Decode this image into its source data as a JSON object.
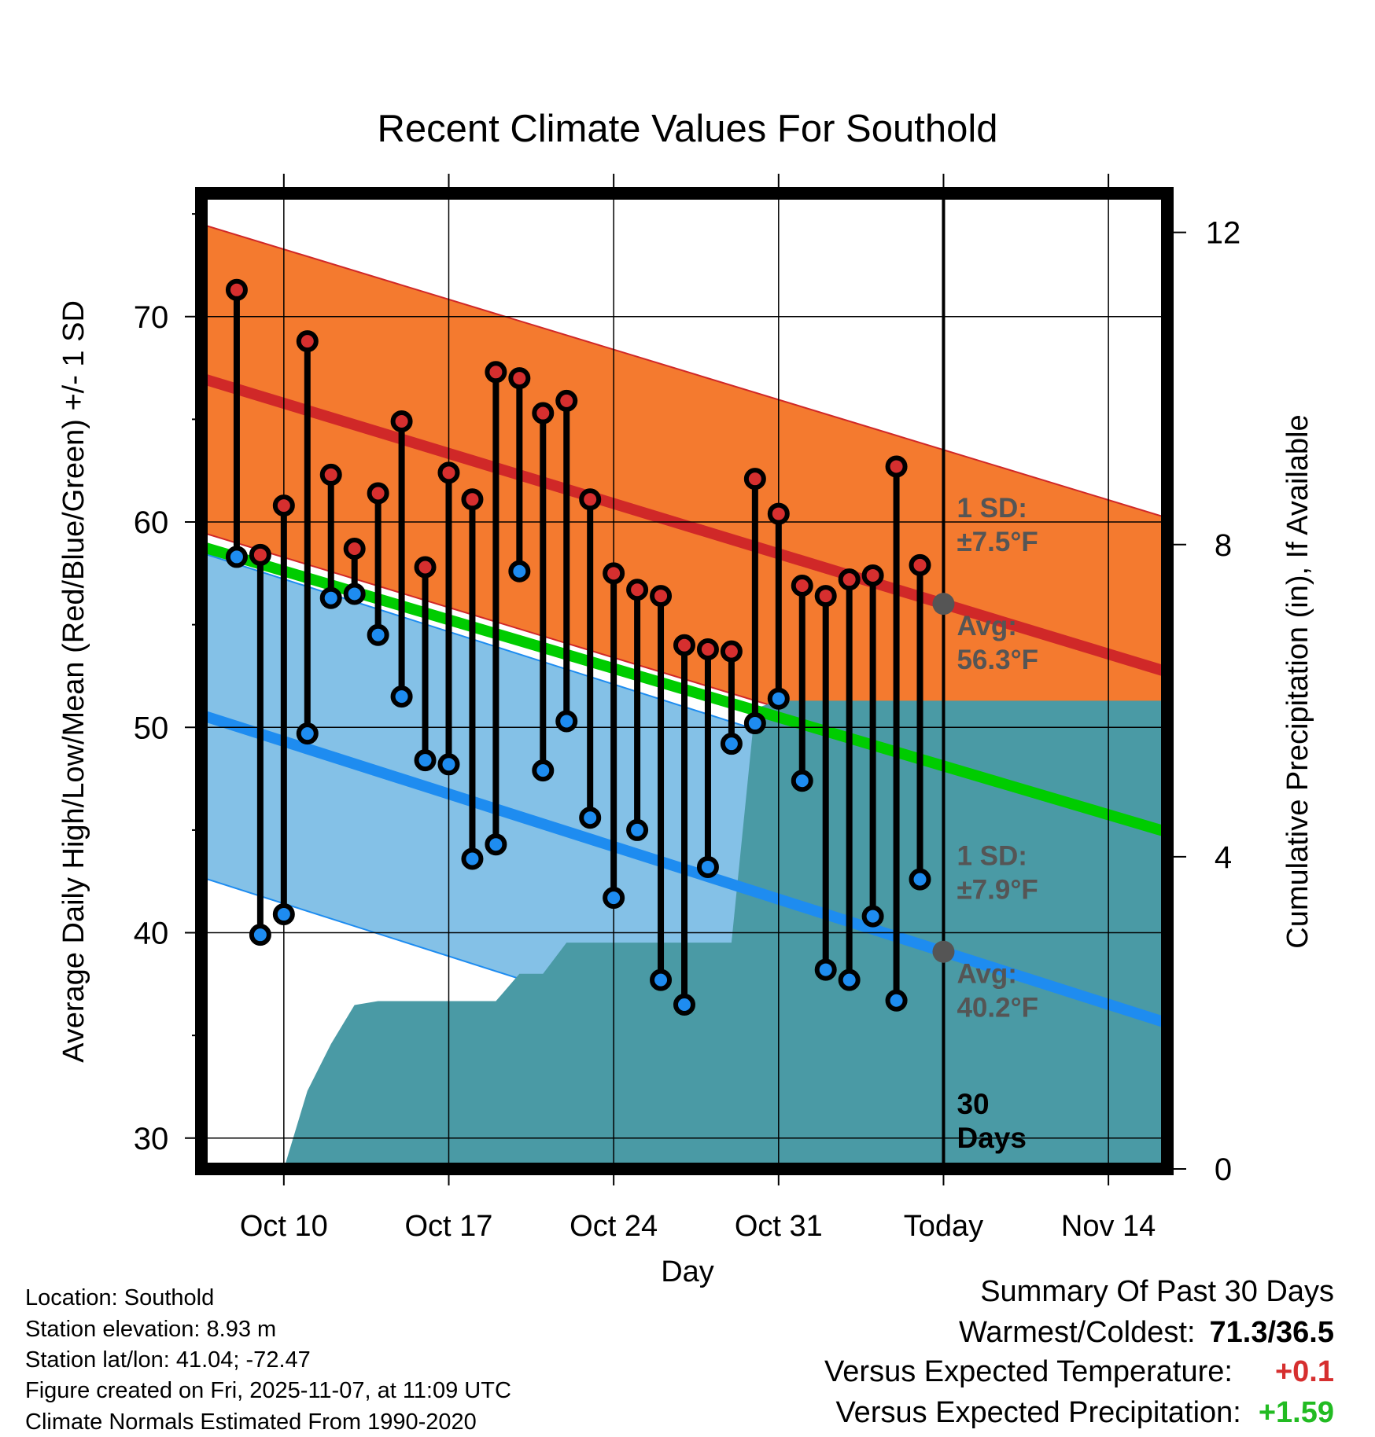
{
  "chart_data": {
    "type": "line",
    "title": "Recent Climate Values For Southold",
    "xlabel": "Day",
    "ylabel": "Average Daily High/Low/Mean (Red/Blue/Green) +/- 1 SD",
    "y2label": "Cumulative Precipitation (in), If Available",
    "x_range": [
      -0.5,
      40.5
    ],
    "ylim": [
      28.5,
      76
    ],
    "y_ticks": [
      30,
      40,
      50,
      60,
      70
    ],
    "y_minor_ticks": [
      35,
      45,
      55,
      65,
      75
    ],
    "y2lim": [
      0,
      12.5
    ],
    "y2_ticks": [
      0,
      4,
      8,
      12
    ],
    "x_ticks": [
      {
        "day": 3,
        "label": "Oct 10"
      },
      {
        "day": 10,
        "label": "Oct 17"
      },
      {
        "day": 17,
        "label": "Oct 24"
      },
      {
        "day": 24,
        "label": "Oct 31"
      },
      {
        "day": 31,
        "label": "Today"
      },
      {
        "day": 38,
        "label": "Nov 14"
      }
    ],
    "today_index": 31,
    "normals": {
      "high_start": 67.0,
      "high_end": 52.7,
      "high_sd": 7.5,
      "low_start": 50.6,
      "low_end": 35.6,
      "low_sd": 7.9,
      "mean_start": 58.8,
      "mean_end": 44.9
    },
    "days": [
      1,
      2,
      3,
      4,
      5,
      6,
      7,
      8,
      9,
      10,
      11,
      12,
      13,
      14,
      15,
      16,
      17,
      18,
      19,
      20,
      21,
      22,
      23,
      24,
      25,
      26,
      27,
      28,
      29,
      30
    ],
    "highs": [
      71.3,
      58.4,
      60.8,
      68.8,
      62.3,
      58.7,
      61.4,
      64.9,
      57.8,
      62.4,
      61.1,
      67.3,
      67.0,
      65.3,
      65.9,
      61.1,
      57.5,
      56.7,
      56.4,
      54.0,
      53.8,
      53.7,
      62.1,
      60.4,
      56.9,
      56.4,
      57.2,
      57.4,
      62.7,
      57.9
    ],
    "lows": [
      58.3,
      39.9,
      40.9,
      49.7,
      56.3,
      56.5,
      54.5,
      51.5,
      48.4,
      48.2,
      43.6,
      44.3,
      57.6,
      47.9,
      50.3,
      45.6,
      41.7,
      45.0,
      37.7,
      36.5,
      43.2,
      49.2,
      50.2,
      51.4,
      47.4,
      38.2,
      37.7,
      40.8,
      36.7,
      42.6
    ],
    "precip_cumulative": [
      [
        3,
        0
      ],
      [
        4,
        1.0
      ],
      [
        5,
        1.6
      ],
      [
        6,
        2.1
      ],
      [
        7,
        2.15
      ],
      [
        8,
        2.15
      ],
      [
        9,
        2.15
      ],
      [
        10,
        2.15
      ],
      [
        11,
        2.15
      ],
      [
        12,
        2.15
      ],
      [
        13,
        2.5
      ],
      [
        14,
        2.5
      ],
      [
        15,
        2.9
      ],
      [
        16,
        2.9
      ],
      [
        17,
        2.9
      ],
      [
        18,
        2.9
      ],
      [
        19,
        2.9
      ],
      [
        20,
        2.9
      ],
      [
        21,
        2.9
      ],
      [
        22,
        2.9
      ],
      [
        23,
        5.9
      ],
      [
        24,
        6.0
      ],
      [
        31,
        6.0
      ],
      [
        40.5,
        6.0
      ]
    ],
    "annotations": {
      "high_sd": "1 SD:",
      "high_sd_val": "±7.5°F",
      "high_avg": "Avg:",
      "high_avg_val": "56.3°F",
      "low_sd": "1 SD:",
      "low_sd_val": "±7.9°F",
      "low_avg": "Avg:",
      "low_avg_val": "40.2°F",
      "days_count": "30",
      "days_word": "Days"
    },
    "colors": {
      "high_band": "#f47a2f",
      "high_line": "#d02828",
      "low_band": "#84c1e7",
      "low_line": "#1e8cf0",
      "mean_line": "#00cc00",
      "precip": "#4a9aa5",
      "high_marker": "#d62f2f",
      "low_marker": "#1e8cf0",
      "annotation": "#555555",
      "today_marker": "#555555"
    }
  },
  "info": {
    "location": "Location: Southold",
    "elevation": "Station elevation: 8.93 m",
    "latlon": "Station lat/lon: 41.04; -72.47",
    "created": "Figure created on Fri, 2025-11-07, at 11:09 UTC",
    "normals": "Climate Normals Estimated From 1990-2020"
  },
  "summary": {
    "heading": "Summary Of Past 30 Days",
    "warm_cold_label": "Warmest/Coldest:",
    "warm_cold_value": "71.3/36.5",
    "temp_label": "Versus Expected Temperature:",
    "temp_value": "+0.1",
    "temp_color": "#d62f2f",
    "precip_label": "Versus Expected Precipitation:",
    "precip_value": "+1.59",
    "precip_color": "#22bb22"
  }
}
